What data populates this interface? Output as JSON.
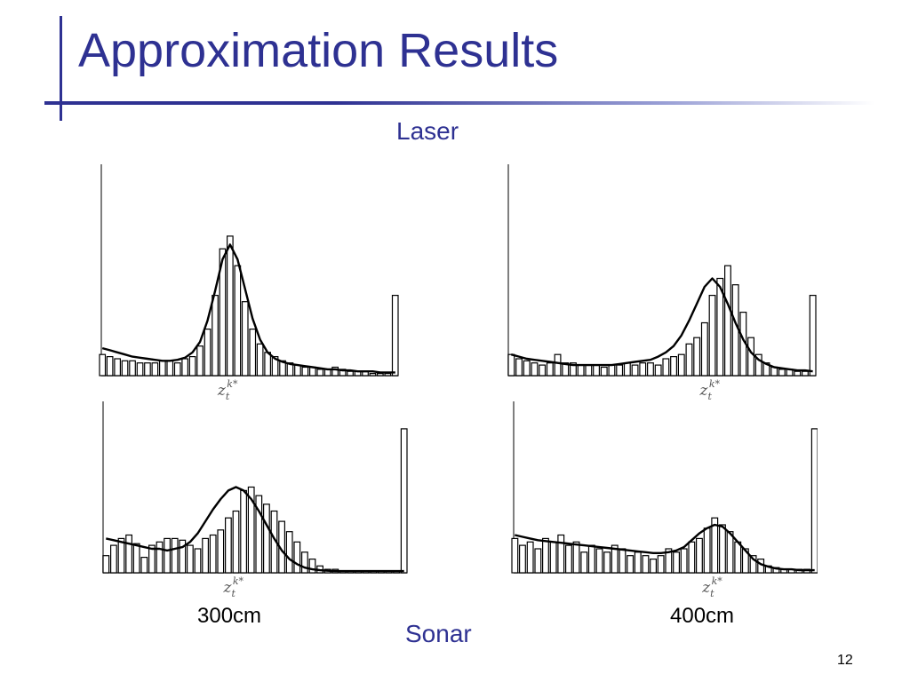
{
  "slide": {
    "title": "Approximation Results",
    "laser_label": "Laser",
    "sonar_label": "Sonar",
    "distance_left": "300cm",
    "distance_right": "400cm",
    "page_number": "12",
    "accent_color": "#2e3192"
  },
  "chart_data": [
    {
      "type": "bar",
      "sensor": "Laser",
      "distance": "300cm",
      "xlabel": "z_t^{k*}",
      "bins": 40,
      "ylim": [
        0,
        100
      ],
      "values": [
        10,
        9,
        8,
        7,
        7,
        6,
        6,
        6,
        7,
        7,
        6,
        8,
        9,
        14,
        22,
        38,
        60,
        66,
        52,
        35,
        22,
        15,
        11,
        9,
        7,
        6,
        5,
        4,
        4,
        3,
        3,
        4,
        3,
        2,
        2,
        2,
        1,
        1,
        1,
        38
      ],
      "fit": [
        13,
        12,
        11,
        10,
        9,
        8.5,
        8,
        7.5,
        7,
        7,
        7.5,
        8.5,
        11,
        16,
        26,
        40,
        55,
        62,
        55,
        41,
        27,
        17,
        11,
        8,
        6.5,
        5.5,
        5,
        4.5,
        4,
        3.5,
        3,
        3,
        2.5,
        2.5,
        2,
        2,
        2,
        1.5,
        1.5,
        1.5
      ]
    },
    {
      "type": "bar",
      "sensor": "Laser",
      "distance": "400cm",
      "xlabel": "z_t^{k*}",
      "bins": 40,
      "ylim": [
        0,
        100
      ],
      "values": [
        10,
        8,
        7,
        6,
        5,
        6,
        10,
        6,
        6,
        5,
        5,
        5,
        4,
        5,
        5,
        6,
        5,
        6,
        6,
        5,
        8,
        9,
        10,
        15,
        18,
        25,
        38,
        46,
        52,
        43,
        30,
        18,
        10,
        6,
        4,
        3,
        3,
        2,
        2,
        38
      ],
      "fit": [
        10,
        9,
        8,
        7.5,
        7,
        6.5,
        6,
        5.5,
        5,
        5,
        5,
        5,
        5,
        5,
        5.5,
        6,
        6.5,
        7,
        7.5,
        9,
        11,
        14,
        19,
        26,
        34,
        42,
        46,
        42,
        34,
        25,
        17,
        11,
        7.5,
        5.5,
        4,
        3.5,
        3,
        2.5,
        2.5,
        2
      ]
    },
    {
      "type": "bar",
      "sensor": "Sonar",
      "distance": "300cm",
      "xlabel": "z_t^{k*}",
      "bins": 40,
      "ylim": [
        0,
        100
      ],
      "values": [
        10,
        16,
        20,
        22,
        17,
        9,
        16,
        18,
        20,
        20,
        19,
        16,
        14,
        20,
        22,
        25,
        32,
        36,
        48,
        50,
        45,
        40,
        36,
        30,
        24,
        18,
        12,
        8,
        4,
        2,
        2,
        1,
        1,
        1,
        1,
        1,
        1,
        1,
        1,
        84
      ],
      "fit": [
        20,
        19,
        18,
        17,
        16,
        15,
        14,
        14,
        13,
        14,
        15,
        18,
        23,
        30,
        37,
        43,
        48,
        50,
        48,
        43,
        36,
        28,
        20,
        13,
        8,
        5,
        3,
        2,
        1.5,
        1.2,
        1,
        1,
        1,
        1,
        1,
        1,
        1,
        1,
        1,
        1
      ]
    },
    {
      "type": "bar",
      "sensor": "Sonar",
      "distance": "400cm",
      "xlabel": "z_t^{k*}",
      "bins": 40,
      "ylim": [
        0,
        100
      ],
      "values": [
        20,
        16,
        18,
        14,
        20,
        18,
        22,
        16,
        18,
        12,
        16,
        14,
        12,
        16,
        14,
        10,
        12,
        10,
        8,
        10,
        14,
        12,
        14,
        18,
        20,
        26,
        32,
        28,
        24,
        18,
        14,
        10,
        8,
        4,
        3,
        2,
        2,
        2,
        2,
        84
      ],
      "fit": [
        22,
        21,
        20,
        19,
        18.5,
        18,
        17.5,
        17,
        16.5,
        16,
        15.5,
        15,
        14.5,
        14,
        13.5,
        13,
        12.5,
        12,
        11.5,
        11.5,
        12,
        13,
        15,
        19,
        23,
        26,
        28,
        27,
        23,
        18,
        13,
        8,
        5,
        3.5,
        2.5,
        2,
        2,
        1.5,
        1.5,
        1.5
      ]
    }
  ]
}
